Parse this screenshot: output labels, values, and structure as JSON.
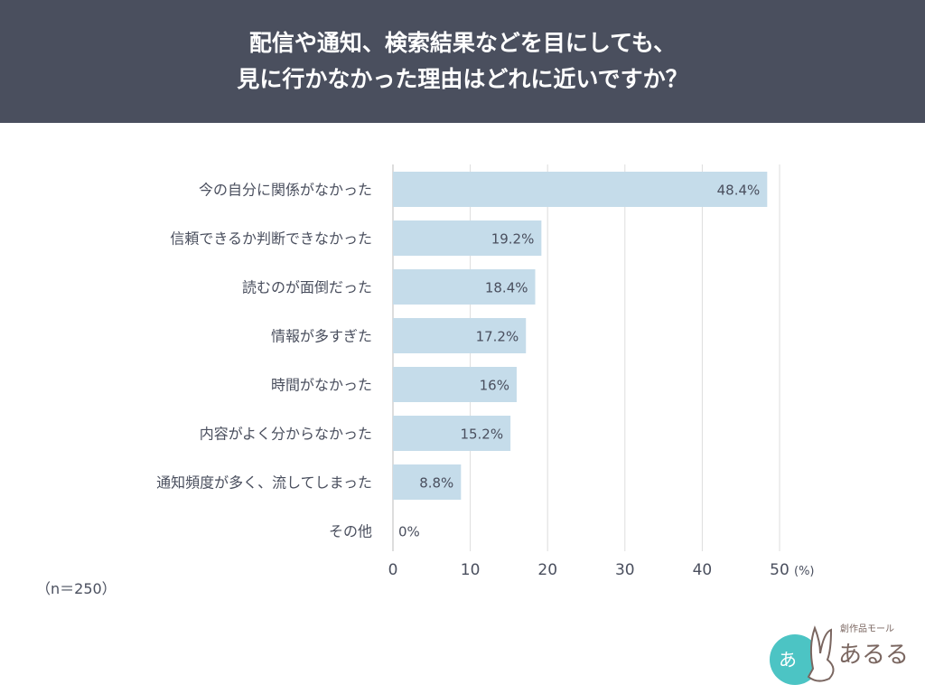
{
  "title_lines": [
    "配信や通知、検索結果などを目にしても、",
    "見に行かなかった理由はどれに近いですか？"
  ],
  "note": "（n＝250）",
  "logo_text": "創作品モール あるる",
  "colors": {
    "header": "#4a4f5e",
    "bar": "#c5dcea",
    "grid": "#dddddd",
    "text": "#4a4f5e"
  },
  "chart_data": {
    "type": "bar",
    "orientation": "horizontal",
    "categories": [
      "今の自分に関係がなかった",
      "信頼できるか判断できなかった",
      "読むのが面倒だった",
      "情報が多すぎた",
      "時間がなかった",
      "内容がよく分からなかった",
      "通知頻度が多く、流してしまった",
      "その他"
    ],
    "values": [
      48.4,
      19.2,
      18.4,
      17.2,
      16,
      15.2,
      8.8,
      0
    ],
    "data_labels": [
      "48.4%",
      "19.2%",
      "18.4%",
      "17.2%",
      "16%",
      "15.2%",
      "8.8%",
      "0%"
    ],
    "xlim": [
      0,
      50
    ],
    "xticks": [
      0,
      10,
      20,
      30,
      40,
      50
    ],
    "xunit": "(%)",
    "grid": true
  }
}
